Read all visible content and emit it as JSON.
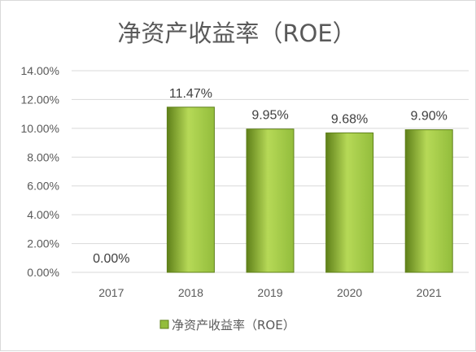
{
  "chart_data": {
    "type": "bar",
    "title": "净资产收益率（ROE）",
    "categories": [
      "2017",
      "2018",
      "2019",
      "2020",
      "2021"
    ],
    "series": [
      {
        "name": "净资产收益率（ROE）",
        "values": [
          0.0,
          11.47,
          9.95,
          9.68,
          9.9
        ],
        "data_labels": [
          "0.00%",
          "11.47%",
          "9.95%",
          "9.68%",
          "9.90%"
        ]
      }
    ],
    "y_ticks": [
      "0.00%",
      "2.00%",
      "4.00%",
      "6.00%",
      "8.00%",
      "10.00%",
      "12.00%",
      "14.00%"
    ],
    "ylim": [
      0,
      14
    ],
    "y_unit": "%",
    "grid": "horizontal",
    "legend_position": "bottom",
    "colors": {
      "bar_light": "#b6d957",
      "bar_mid": "#93bd3c",
      "bar_dark": "#5f8019",
      "grid": "#d9d9d9",
      "text": "#595959"
    }
  }
}
